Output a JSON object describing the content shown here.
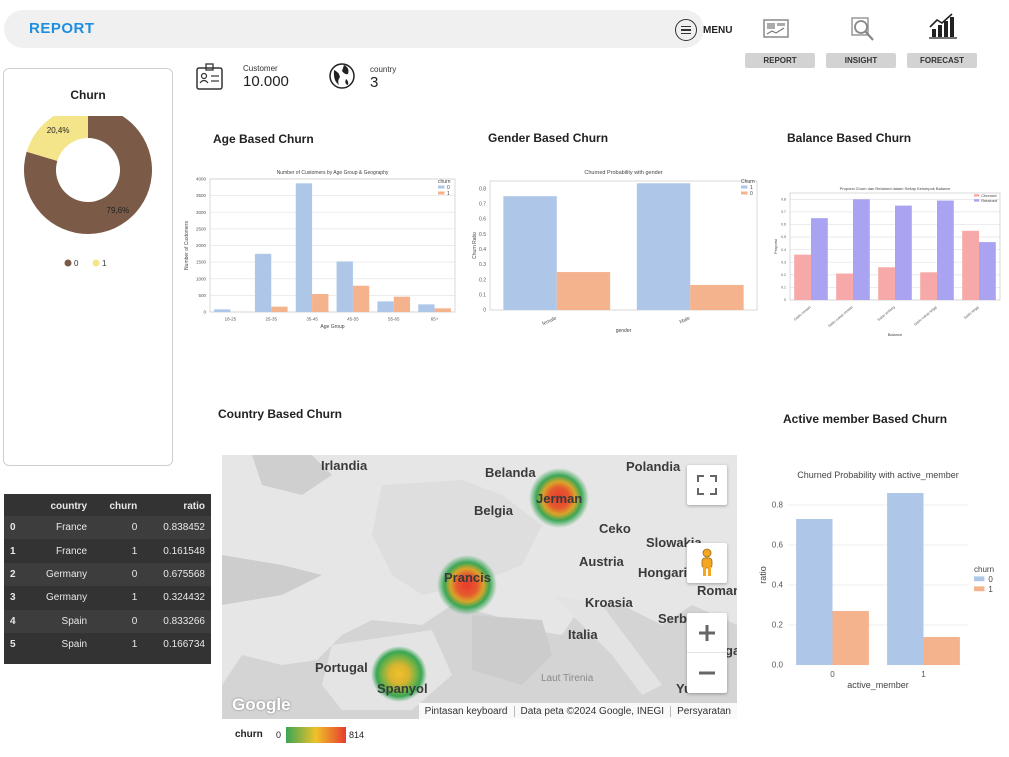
{
  "header": {
    "title": "REPORT",
    "menu_label": "MENU"
  },
  "nav": [
    {
      "label": "REPORT",
      "icon": "report-icon"
    },
    {
      "label": "INSIGHT",
      "icon": "insight-icon"
    },
    {
      "label": "FORECAST",
      "icon": "forecast-icon"
    }
  ],
  "stats": {
    "customer_label": "Customer",
    "customer_value": "10.000",
    "country_label": "country",
    "country_value": "3"
  },
  "churn_panel": {
    "title": "Churn",
    "chart_data": {
      "type": "pie",
      "categories": [
        "0",
        "1"
      ],
      "values": [
        79.6,
        20.4
      ],
      "labels": [
        "79,6%",
        "20,4%"
      ],
      "colors": [
        "#7b5b48",
        "#f5e58a"
      ]
    }
  },
  "age_chart": {
    "heading": "Age Based Churn",
    "chart_data": {
      "type": "bar",
      "title": "Number of Customers by Age Group & Geography",
      "xlabel": "Age Group",
      "ylabel": "Number of Customers",
      "categories": [
        "18-25",
        "25-35",
        "35-45",
        "45-55",
        "55-65",
        "65+"
      ],
      "ylim": [
        0,
        4000
      ],
      "yticks": [
        0,
        500,
        1000,
        1500,
        2000,
        2500,
        3000,
        3500,
        4000
      ],
      "legend_title": "churn",
      "series": [
        {
          "name": "0",
          "values": [
            80,
            1750,
            3870,
            1520,
            320,
            230
          ],
          "color": "#aec7e8"
        },
        {
          "name": "1",
          "values": [
            0,
            160,
            540,
            790,
            460,
            110
          ],
          "color": "#f4b28d"
        }
      ]
    }
  },
  "gender_chart": {
    "heading": "Gender Based Churn",
    "chart_data": {
      "type": "bar",
      "title": "Churned Probability with gender",
      "xlabel": "gender",
      "ylabel": "Churn Ratio",
      "categories": [
        "female",
        "Male"
      ],
      "ylim": [
        0,
        0.85
      ],
      "yticks": [
        0,
        0.1,
        0.2,
        0.3,
        0.4,
        0.5,
        0.6,
        0.7,
        0.8
      ],
      "legend_title": "Churn",
      "series": [
        {
          "name": "1",
          "values": [
            0.75,
            0.835
          ],
          "color": "#aec7e8"
        },
        {
          "name": "0",
          "values": [
            0.25,
            0.165
          ],
          "color": "#f4b28d"
        }
      ]
    }
  },
  "balance_chart": {
    "heading": "Balance Based Churn",
    "chart_data": {
      "type": "bar",
      "title": "Proporsi Churn dan Retained dalam Setiap Kelompok Balance",
      "xlabel": "Balance",
      "ylabel": "Proporsi",
      "categories": [
        "Saldo rendah",
        "Saldo cukup rendah",
        "Saldo sedang",
        "Saldo cukup tinggi",
        "Saldo tinggi"
      ],
      "ylim": [
        0,
        0.85
      ],
      "yticks": [
        0,
        0.1,
        0.2,
        0.3,
        0.4,
        0.5,
        0.6,
        0.7,
        0.8
      ],
      "series": [
        {
          "name": "Churned",
          "values": [
            0.36,
            0.21,
            0.26,
            0.22,
            0.55
          ],
          "color": "#f7a8a8"
        },
        {
          "name": "Retained",
          "values": [
            0.65,
            0.8,
            0.75,
            0.79,
            0.46
          ],
          "color": "#a9a3f2"
        }
      ]
    }
  },
  "country_section": {
    "heading": "Country  Based Churn",
    "map_labels": [
      "Irlandia",
      "Belanda",
      "Polandia",
      "Belgia",
      "Jerman",
      "Ceko",
      "Slowakia",
      "Prancis",
      "Austria",
      "Hongari",
      "Roman",
      "Kroasia",
      "Serb",
      "ga",
      "Italia",
      "Portugal",
      "Spanyol",
      "Laut Tirenia",
      "Yu"
    ],
    "google_logo": "Google",
    "footer": [
      "Pintasan keyboard",
      "Data peta ©2024 Google, INEGI",
      "Persyaratan"
    ],
    "legend_label": "churn",
    "legend_min": "0",
    "legend_max": "814"
  },
  "active_chart": {
    "heading": "Active member Based Churn",
    "chart_data": {
      "type": "bar",
      "title": "Churned Probability with active_member",
      "xlabel": "active_member",
      "ylabel": "ratio",
      "categories": [
        "0",
        "1"
      ],
      "ylim": [
        0,
        0.9
      ],
      "yticks": [
        "0.0",
        "0.2",
        "0.4",
        "0.6",
        "0.8"
      ],
      "legend_title": "churn",
      "series": [
        {
          "name": "0",
          "values": [
            0.73,
            0.86
          ],
          "color": "#aec7e8"
        },
        {
          "name": "1",
          "values": [
            0.27,
            0.14
          ],
          "color": "#f4b28d"
        }
      ]
    }
  },
  "table": {
    "columns": [
      "",
      "country",
      "churn",
      "ratio"
    ],
    "rows": [
      [
        "0",
        "France",
        "0",
        "0.838452"
      ],
      [
        "1",
        "France",
        "1",
        "0.161548"
      ],
      [
        "2",
        "Germany",
        "0",
        "0.675568"
      ],
      [
        "3",
        "Germany",
        "1",
        "0.324432"
      ],
      [
        "4",
        "Spain",
        "0",
        "0.833266"
      ],
      [
        "5",
        "Spain",
        "1",
        "0.166734"
      ]
    ]
  }
}
